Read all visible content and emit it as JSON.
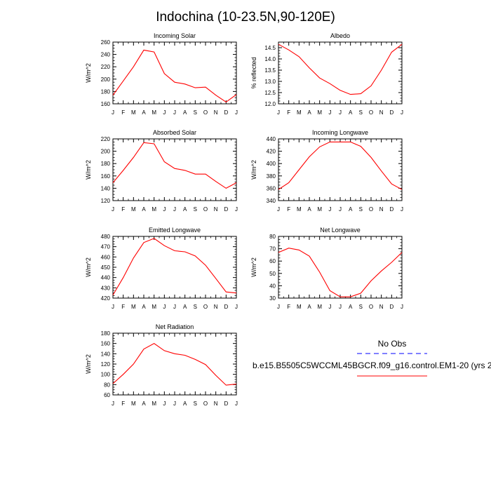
{
  "figure": {
    "title": "Indochina (10-23.5N,90-120E)",
    "colors": {
      "model": "#ff0000",
      "obs": "#0000ff",
      "axis": "#000000"
    }
  },
  "legend": {
    "obs_label": "No Obs",
    "model_label": "b.e15.B5505C5WCCML45BGCR.f09_g16.control.EM1-20 (yrs 2"
  },
  "chart_data": [
    {
      "type": "line",
      "id": "incoming-solar",
      "title": "Incoming Solar",
      "xlabel": "",
      "ylabel": "W/m^2",
      "x_tick_labels": [
        "J",
        "F",
        "M",
        "A",
        "M",
        "J",
        "J",
        "A",
        "S",
        "O",
        "N",
        "D",
        "J"
      ],
      "ylim": [
        160,
        260
      ],
      "y_ticks": [
        160,
        180,
        200,
        220,
        240,
        260
      ],
      "y_tick_labels": [
        "160",
        "180",
        "200",
        "220",
        "240",
        "260"
      ],
      "series": [
        {
          "name": "model",
          "values": [
            174,
            197,
            220,
            247,
            244,
            209,
            195,
            192,
            186,
            187,
            174,
            163,
            175
          ]
        }
      ]
    },
    {
      "type": "line",
      "id": "albedo",
      "title": "Albedo",
      "xlabel": "",
      "ylabel": "% reflected",
      "x_tick_labels": [
        "J",
        "F",
        "M",
        "A",
        "M",
        "J",
        "J",
        "A",
        "S",
        "O",
        "N",
        "D",
        "J"
      ],
      "ylim": [
        12.0,
        14.75
      ],
      "y_ticks": [
        12.0,
        12.5,
        13.0,
        13.5,
        14.0,
        14.5
      ],
      "y_tick_labels": [
        "12.0",
        "12.5",
        "13.0",
        "13.5",
        "14.0",
        "14.5"
      ],
      "series": [
        {
          "name": "model",
          "values": [
            14.65,
            14.4,
            14.1,
            13.6,
            13.15,
            12.9,
            12.6,
            12.42,
            12.45,
            12.8,
            13.5,
            14.3,
            14.65
          ]
        }
      ]
    },
    {
      "type": "line",
      "id": "absorbed-solar",
      "title": "Absorbed Solar",
      "xlabel": "",
      "ylabel": "W/m^2",
      "x_tick_labels": [
        "J",
        "F",
        "M",
        "A",
        "M",
        "J",
        "J",
        "A",
        "S",
        "O",
        "N",
        "D",
        "J"
      ],
      "ylim": [
        120,
        220
      ],
      "y_ticks": [
        120,
        140,
        160,
        180,
        200,
        220
      ],
      "y_tick_labels": [
        "120",
        "140",
        "160",
        "180",
        "200",
        "220"
      ],
      "series": [
        {
          "name": "model",
          "values": [
            149,
            169,
            190,
            214,
            212,
            183,
            172,
            169,
            163,
            163,
            151,
            140,
            149
          ]
        }
      ]
    },
    {
      "type": "line",
      "id": "incoming-longwave",
      "title": "Incoming Longwave",
      "xlabel": "",
      "ylabel": "W/m^2",
      "x_tick_labels": [
        "J",
        "F",
        "M",
        "A",
        "M",
        "J",
        "J",
        "A",
        "S",
        "O",
        "N",
        "D",
        "J"
      ],
      "ylim": [
        340,
        440
      ],
      "y_ticks": [
        340,
        360,
        380,
        400,
        420,
        440
      ],
      "y_tick_labels": [
        "340",
        "360",
        "380",
        "400",
        "420",
        "440"
      ],
      "series": [
        {
          "name": "model",
          "values": [
            358,
            369,
            390,
            411,
            427,
            435,
            435,
            435,
            428,
            410,
            388,
            367,
            358
          ]
        }
      ]
    },
    {
      "type": "line",
      "id": "emitted-longwave",
      "title": "Emitted Longwave",
      "xlabel": "",
      "ylabel": "W/m^2",
      "x_tick_labels": [
        "J",
        "F",
        "M",
        "A",
        "M",
        "J",
        "J",
        "A",
        "S",
        "O",
        "N",
        "D",
        "J"
      ],
      "ylim": [
        420,
        480
      ],
      "y_ticks": [
        420,
        430,
        440,
        450,
        460,
        470,
        480
      ],
      "y_tick_labels": [
        "420",
        "430",
        "440",
        "450",
        "460",
        "470",
        "480"
      ],
      "series": [
        {
          "name": "model",
          "values": [
            423,
            440,
            459,
            474,
            478,
            471,
            466,
            465,
            461,
            452,
            439,
            426,
            425
          ]
        }
      ]
    },
    {
      "type": "line",
      "id": "net-longwave",
      "title": "Net Longwave",
      "xlabel": "",
      "ylabel": "W/m^2",
      "x_tick_labels": [
        "J",
        "F",
        "M",
        "A",
        "M",
        "J",
        "J",
        "A",
        "S",
        "O",
        "N",
        "D",
        "J"
      ],
      "ylim": [
        30,
        80
      ],
      "y_ticks": [
        30,
        40,
        50,
        60,
        70,
        80
      ],
      "y_tick_labels": [
        "30",
        "40",
        "50",
        "60",
        "70",
        "80"
      ],
      "series": [
        {
          "name": "model",
          "values": [
            67,
            70.5,
            69,
            64,
            51,
            36,
            31,
            31,
            34,
            44,
            52,
            59,
            67
          ]
        }
      ]
    },
    {
      "type": "line",
      "id": "net-radiation",
      "title": "Net Radiation",
      "xlabel": "",
      "ylabel": "W/m^2",
      "x_tick_labels": [
        "J",
        "F",
        "M",
        "A",
        "M",
        "J",
        "J",
        "A",
        "S",
        "O",
        "N",
        "D",
        "J"
      ],
      "ylim": [
        60,
        180
      ],
      "y_ticks": [
        60,
        80,
        100,
        120,
        140,
        160,
        180
      ],
      "y_tick_labels": [
        "60",
        "80",
        "100",
        "120",
        "140",
        "160",
        "180"
      ],
      "series": [
        {
          "name": "model",
          "values": [
            82,
            100,
            120,
            149,
            160,
            146,
            140,
            137,
            129,
            119,
            98,
            79,
            81
          ]
        }
      ]
    }
  ]
}
